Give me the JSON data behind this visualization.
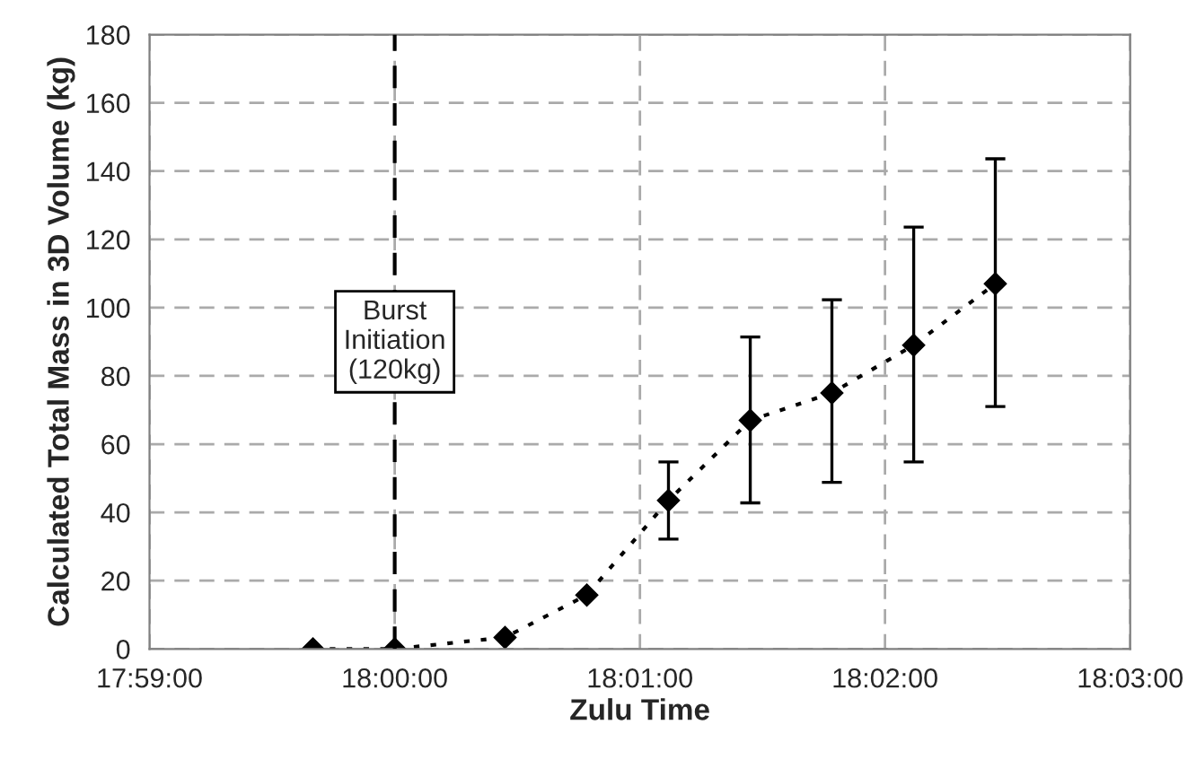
{
  "chart_data": {
    "type": "line",
    "xlabel": "Zulu Time",
    "ylabel": "Calculated Total Mass in 3D Volume (kg)",
    "x": [
      17.99444,
      18.0,
      18.0075,
      18.01306,
      18.01861,
      18.02417,
      18.02972,
      18.03528,
      18.04083
    ],
    "series": [
      {
        "color": "#000000",
        "values": [
          0,
          0,
          3.4,
          15.8,
          43.5,
          67,
          75,
          89,
          107
        ],
        "errors": [
          null,
          null,
          null,
          null,
          [
            32.2,
            54.8
          ],
          [
            42.8,
            91.4
          ],
          [
            48.8,
            102.3
          ],
          [
            54.8,
            123.6
          ],
          [
            71,
            143.6
          ]
        ]
      }
    ],
    "xlim": [
      17.98333,
      18.05
    ],
    "xticks": [
      {
        "value": 17.98333,
        "label": "17:59:00"
      },
      {
        "value": 18.0,
        "label": "18:00:00"
      },
      {
        "value": 18.01667,
        "label": "18:01:00"
      },
      {
        "value": 18.03333,
        "label": "18:02:00"
      },
      {
        "value": 18.05,
        "label": "18:03:00"
      }
    ],
    "ylim": [
      0,
      180
    ],
    "yticks": [
      0,
      20,
      40,
      60,
      80,
      100,
      120,
      140,
      160,
      180
    ],
    "ref_lines": [
      {
        "axis": "x",
        "value": 18.0,
        "label": "Burst\nInitiation\n(120kg)",
        "color": "#000000",
        "line_style": "dashed"
      }
    ],
    "grid": true,
    "marker": "diamond",
    "line_style": "dotted",
    "legend": false
  }
}
